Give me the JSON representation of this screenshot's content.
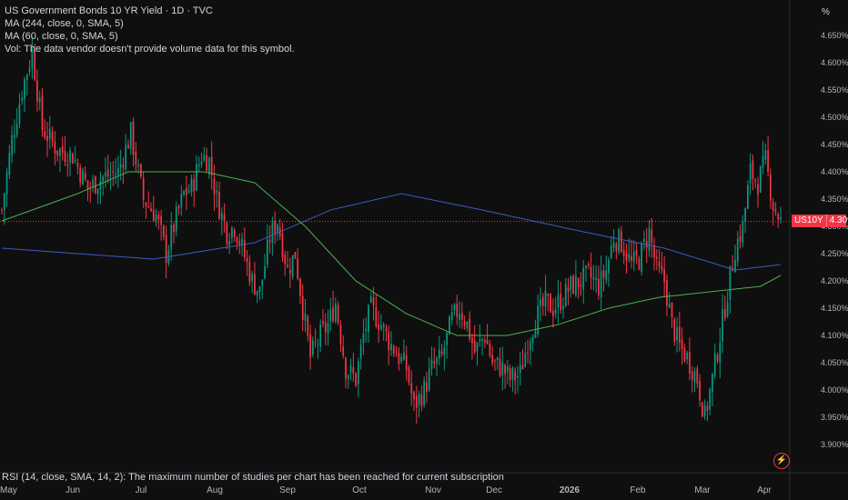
{
  "legend": {
    "title": "US Government Bonds 10 YR Yield · 1D · TVC",
    "ma1": "MA (244, close, 0, SMA, 5)",
    "ma2": "MA (60, close, 0, SMA, 5)",
    "vol": "Vol: The data vendor doesn't provide volume data for this symbol."
  },
  "axis_unit": "%",
  "rsi_note": "RSI (14, close, SMA, 14, 2): The maximum number of studies per chart has been reached for current subscription",
  "price_tag": {
    "symbol": "US10Y",
    "value": "4.309%"
  },
  "colors": {
    "up": "#089981",
    "down": "#f23645",
    "ma244": "#3d5bc0",
    "ma60": "#4caf50",
    "bg": "#0f0f0f"
  },
  "icons": [
    "lightning-icon"
  ],
  "chart_data": {
    "type": "candlestick",
    "y_tick_labels": [
      "4.650%",
      "4.600%",
      "4.550%",
      "4.500%",
      "4.450%",
      "4.400%",
      "4.350%",
      "4.300%",
      "4.250%",
      "4.200%",
      "4.150%",
      "4.100%",
      "4.050%",
      "4.000%",
      "3.950%",
      "3.900%"
    ],
    "x_tick_labels": [
      "May",
      "Jun",
      "Jul",
      "Aug",
      "Sep",
      "Oct",
      "Nov",
      "Dec",
      "2026",
      "Feb",
      "Mar",
      "Apr"
    ],
    "ylim": [
      3.88,
      4.66
    ],
    "grid": false,
    "last_value": 4.309,
    "close_points": [
      [
        0,
        4.33
      ],
      [
        4,
        4.46
      ],
      [
        8,
        4.55
      ],
      [
        12,
        4.62
      ],
      [
        16,
        4.48
      ],
      [
        22,
        4.44
      ],
      [
        28,
        4.43
      ],
      [
        34,
        4.37
      ],
      [
        40,
        4.39
      ],
      [
        46,
        4.4
      ],
      [
        51,
        4.47
      ],
      [
        56,
        4.35
      ],
      [
        61,
        4.32
      ],
      [
        65,
        4.25
      ],
      [
        68,
        4.3
      ],
      [
        72,
        4.36
      ],
      [
        75,
        4.37
      ],
      [
        79,
        4.43
      ],
      [
        82,
        4.42
      ],
      [
        85,
        4.35
      ],
      [
        89,
        4.29
      ],
      [
        92,
        4.3
      ],
      [
        95,
        4.26
      ],
      [
        99,
        4.2
      ],
      [
        102,
        4.18
      ],
      [
        106,
        4.28
      ],
      [
        109,
        4.31
      ],
      [
        113,
        4.22
      ],
      [
        116,
        4.25
      ],
      [
        119,
        4.15
      ],
      [
        122,
        4.06
      ],
      [
        126,
        4.1
      ],
      [
        129,
        4.12
      ],
      [
        132,
        4.16
      ],
      [
        136,
        4.04
      ],
      [
        140,
        4.02
      ],
      [
        143,
        4.1
      ],
      [
        146,
        4.15
      ],
      [
        150,
        4.12
      ],
      [
        153,
        4.09
      ],
      [
        157,
        4.06
      ],
      [
        160,
        4.04
      ],
      [
        163,
        3.97
      ],
      [
        167,
        4.0
      ],
      [
        170,
        4.04
      ],
      [
        174,
        4.06
      ],
      [
        178,
        4.13
      ],
      [
        181,
        4.15
      ],
      [
        184,
        4.12
      ],
      [
        187,
        4.07
      ],
      [
        191,
        4.1
      ],
      [
        194,
        4.05
      ],
      [
        198,
        4.04
      ],
      [
        201,
        4.02
      ],
      [
        205,
        4.03
      ],
      [
        208,
        4.09
      ],
      [
        211,
        4.13
      ],
      [
        215,
        4.16
      ],
      [
        218,
        4.15
      ],
      [
        222,
        4.17
      ],
      [
        225,
        4.19
      ],
      [
        229,
        4.2
      ],
      [
        232,
        4.21
      ],
      [
        236,
        4.19
      ],
      [
        239,
        4.22
      ],
      [
        242,
        4.28
      ],
      [
        245,
        4.27
      ],
      [
        249,
        4.23
      ],
      [
        252,
        4.24
      ],
      [
        256,
        4.29
      ],
      [
        259,
        4.22
      ],
      [
        262,
        4.2
      ],
      [
        265,
        4.12
      ],
      [
        268,
        4.08
      ],
      [
        271,
        4.06
      ],
      [
        275,
        4.02
      ],
      [
        278,
        3.95
      ],
      [
        281,
        4.02
      ],
      [
        284,
        4.1
      ],
      [
        287,
        4.18
      ],
      [
        290,
        4.26
      ],
      [
        293,
        4.3
      ],
      [
        296,
        4.4
      ],
      [
        299,
        4.38
      ],
      [
        302,
        4.42
      ],
      [
        305,
        4.34
      ],
      [
        308,
        4.31
      ]
    ],
    "series": [
      {
        "name": "MA (244, close, 0, SMA, 5)",
        "points": [
          [
            0,
            4.26
          ],
          [
            60,
            4.24
          ],
          [
            100,
            4.27
          ],
          [
            130,
            4.33
          ],
          [
            158,
            4.36
          ],
          [
            190,
            4.33
          ],
          [
            230,
            4.29
          ],
          [
            262,
            4.26
          ],
          [
            290,
            4.22
          ],
          [
            308,
            4.23
          ]
        ]
      },
      {
        "name": "MA (60, close, 0, SMA, 5)",
        "points": [
          [
            0,
            4.31
          ],
          [
            30,
            4.36
          ],
          [
            50,
            4.4
          ],
          [
            80,
            4.4
          ],
          [
            100,
            4.38
          ],
          [
            120,
            4.3
          ],
          [
            140,
            4.2
          ],
          [
            160,
            4.14
          ],
          [
            180,
            4.1
          ],
          [
            200,
            4.1
          ],
          [
            220,
            4.12
          ],
          [
            240,
            4.15
          ],
          [
            260,
            4.17
          ],
          [
            280,
            4.18
          ],
          [
            300,
            4.19
          ],
          [
            308,
            4.21
          ]
        ]
      }
    ]
  }
}
